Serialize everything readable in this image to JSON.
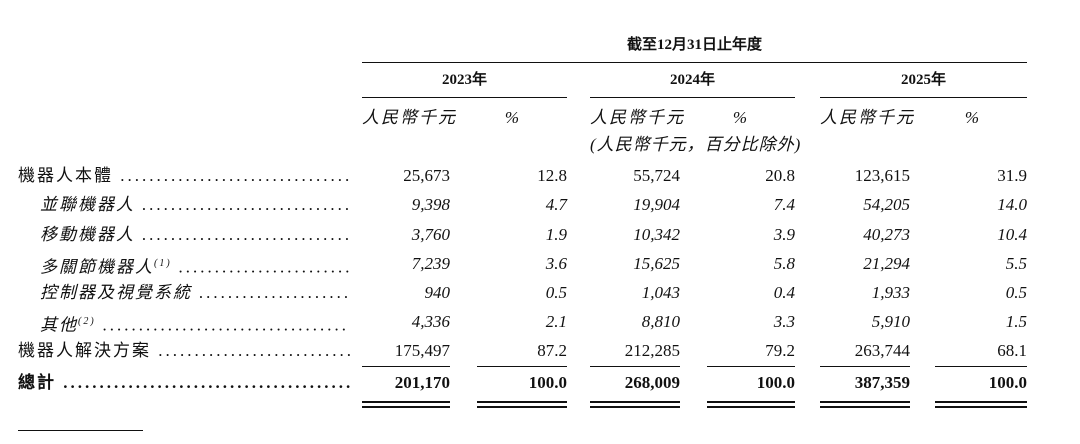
{
  "header": {
    "period": "截至12月31日止年度"
  },
  "column_groups": [
    {
      "year": "2023年",
      "unit": "人民幣千元",
      "pct": "%"
    },
    {
      "year": "2024年",
      "unit": "人民幣千元",
      "pct": "%",
      "note": "(人民幣千元，百分比除外)"
    },
    {
      "year": "2025年",
      "unit": "人民幣千元",
      "pct": "%"
    }
  ],
  "table": {
    "rows": [
      {
        "label": "機器人本體",
        "values": [
          "25,673",
          "12.8",
          "55,724",
          "20.8",
          "123,615",
          "31.9"
        ]
      },
      {
        "label": "並聯機器人",
        "values": [
          "9,398",
          "4.7",
          "19,904",
          "7.4",
          "54,205",
          "14.0"
        ]
      },
      {
        "label": "移動機器人",
        "values": [
          "3,760",
          "1.9",
          "10,342",
          "3.9",
          "40,273",
          "10.4"
        ]
      },
      {
        "label": "多關節機器人",
        "note": "(1)",
        "values": [
          "7,239",
          "3.6",
          "15,625",
          "5.8",
          "21,294",
          "5.5"
        ]
      },
      {
        "label": "控制器及視覺系統",
        "values": [
          "940",
          "0.5",
          "1,043",
          "0.4",
          "1,933",
          "0.5"
        ]
      },
      {
        "label": "其他",
        "note": "(2)",
        "values": [
          "4,336",
          "2.1",
          "8,810",
          "3.3",
          "5,910",
          "1.5"
        ]
      },
      {
        "label": "機器人解決方案",
        "values": [
          "175,497",
          "87.2",
          "212,285",
          "79.2",
          "263,744",
          "68.1"
        ]
      },
      {
        "label": "總計",
        "values": [
          "201,170",
          "100.0",
          "268,009",
          "100.0",
          "387,359",
          "100.0"
        ]
      }
    ]
  }
}
